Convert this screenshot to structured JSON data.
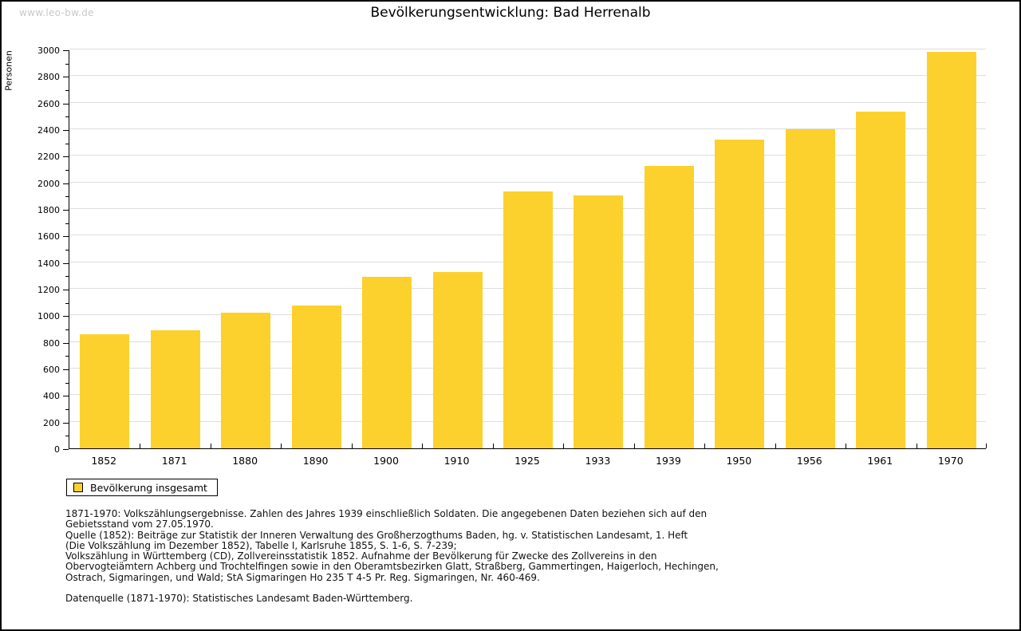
{
  "page": {
    "watermark": "www.leo-bw.de",
    "title": "Bevölkerungsentwicklung: Bad Herrenalb"
  },
  "chart_data": {
    "type": "bar",
    "title": "Bevölkerungsentwicklung: Bad Herrenalb",
    "xlabel": "",
    "ylabel": "Personen",
    "categories": [
      "1852",
      "1871",
      "1880",
      "1890",
      "1900",
      "1910",
      "1925",
      "1933",
      "1939",
      "1950",
      "1956",
      "1961",
      "1970"
    ],
    "values": [
      860,
      890,
      1020,
      1075,
      1290,
      1325,
      1935,
      1905,
      2125,
      2325,
      2400,
      2530,
      2980
    ],
    "series_label": "Bevölkerung insgesamt",
    "ylim": [
      0,
      3000
    ],
    "ytick_step": 200,
    "minor_tick_step": 100,
    "grid": "horizontal-major-only",
    "legend_position": "bottom-left",
    "bar_color": "#FCD12D",
    "gridline_color": "#DEDEDE",
    "axis_color": "#000000"
  },
  "legend": {
    "label": "Bevölkerung insgesamt"
  },
  "footnotes": {
    "lines": [
      "1871-1970: Volkszählungsergebnisse. Zahlen des Jahres 1939 einschließlich Soldaten. Die angegebenen Daten beziehen sich auf den",
      "Gebietsstand vom 27.05.1970.",
      "Quelle (1852): Beiträge zur Statistik der Inneren Verwaltung des Großherzogthums Baden, hg. v. Statistischen Landesamt, 1. Heft",
      "(Die Volkszählung im Dezember 1852), Tabelle I, Karlsruhe 1855, S. 1-6, S. 7-239;",
      "Volkszählung in Württemberg (CD), Zollvereinsstatistik 1852. Aufnahme der Bevölkerung für Zwecke des Zollvereins in den",
      "Obervogteiämtern Achberg und Trochtelfingen sowie in den Oberamtsbezirken Glatt, Straßberg, Gammertingen, Haigerloch, Hechingen,",
      "Ostrach, Sigmaringen, und Wald; StA Sigmaringen Ho 235 T 4-5 Pr. Reg. Sigmaringen, Nr. 460-469."
    ],
    "source_line": "Datenquelle (1871-1970): Statistisches Landesamt Baden-Württemberg."
  }
}
